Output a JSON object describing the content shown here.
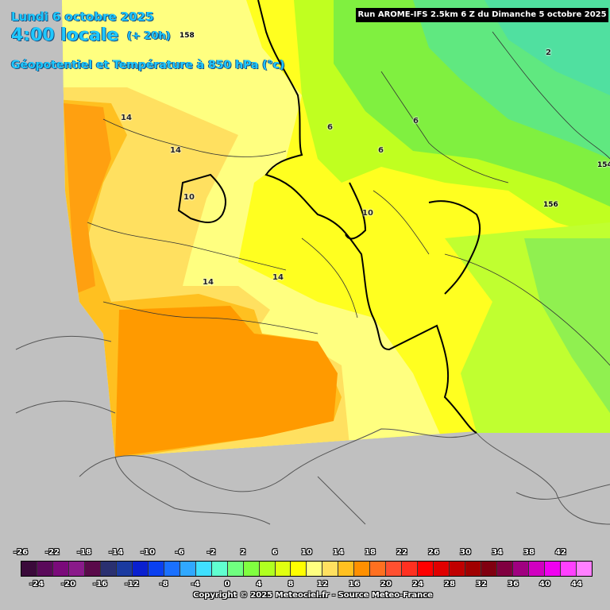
{
  "header": {
    "date": "Lundi 6 octobre 2025",
    "time": "4:00 locale",
    "lead": "(+ 20h)",
    "subtitle": "Géopotentiel et Température à 850 hPa (°c)",
    "run": "Run AROME-IFS 2.5km 6 Z du Dimanche 5 octobre 2025"
  },
  "contour_labels": {
    "temperature": [
      "14",
      "14",
      "10",
      "14",
      "14",
      "6",
      "6",
      "6",
      "10",
      "2"
    ],
    "geopotential": [
      "158",
      "154",
      "156"
    ]
  },
  "legend": {
    "labels_top": [
      "-26",
      "-22",
      "-18",
      "-14",
      "-10",
      "-6",
      "-2",
      "2",
      "6",
      "10",
      "14",
      "18",
      "22",
      "26",
      "30",
      "34",
      "38",
      "42"
    ],
    "labels_bottom": [
      "-24",
      "-20",
      "-16",
      "-12",
      "-8",
      "-4",
      "0",
      "4",
      "8",
      "12",
      "16",
      "20",
      "24",
      "28",
      "32",
      "36",
      "40",
      "44"
    ],
    "colors": [
      "#3a0a3a",
      "#5a0a5a",
      "#7a0a7a",
      "#8a1a8a",
      "#5a0a4a",
      "#2a3070",
      "#1a3aa0",
      "#0a20d0",
      "#0a40f0",
      "#1a70ff",
      "#30a8ff",
      "#40e0ff",
      "#60ffd0",
      "#70ff80",
      "#80ff40",
      "#b0ff20",
      "#e0ff10",
      "#ffff00",
      "#ffff80",
      "#ffe060",
      "#ffc020",
      "#ff9000",
      "#ff7020",
      "#ff5030",
      "#ff3020",
      "#ff0000",
      "#e00000",
      "#c00000",
      "#a00000",
      "#800010",
      "#800040",
      "#a00080",
      "#d000c0",
      "#f000f0",
      "#ff40ff",
      "#ff80ff"
    ]
  },
  "copyright": "Copyright © 2025 Meteociel.fr - Source Meteo-France"
}
